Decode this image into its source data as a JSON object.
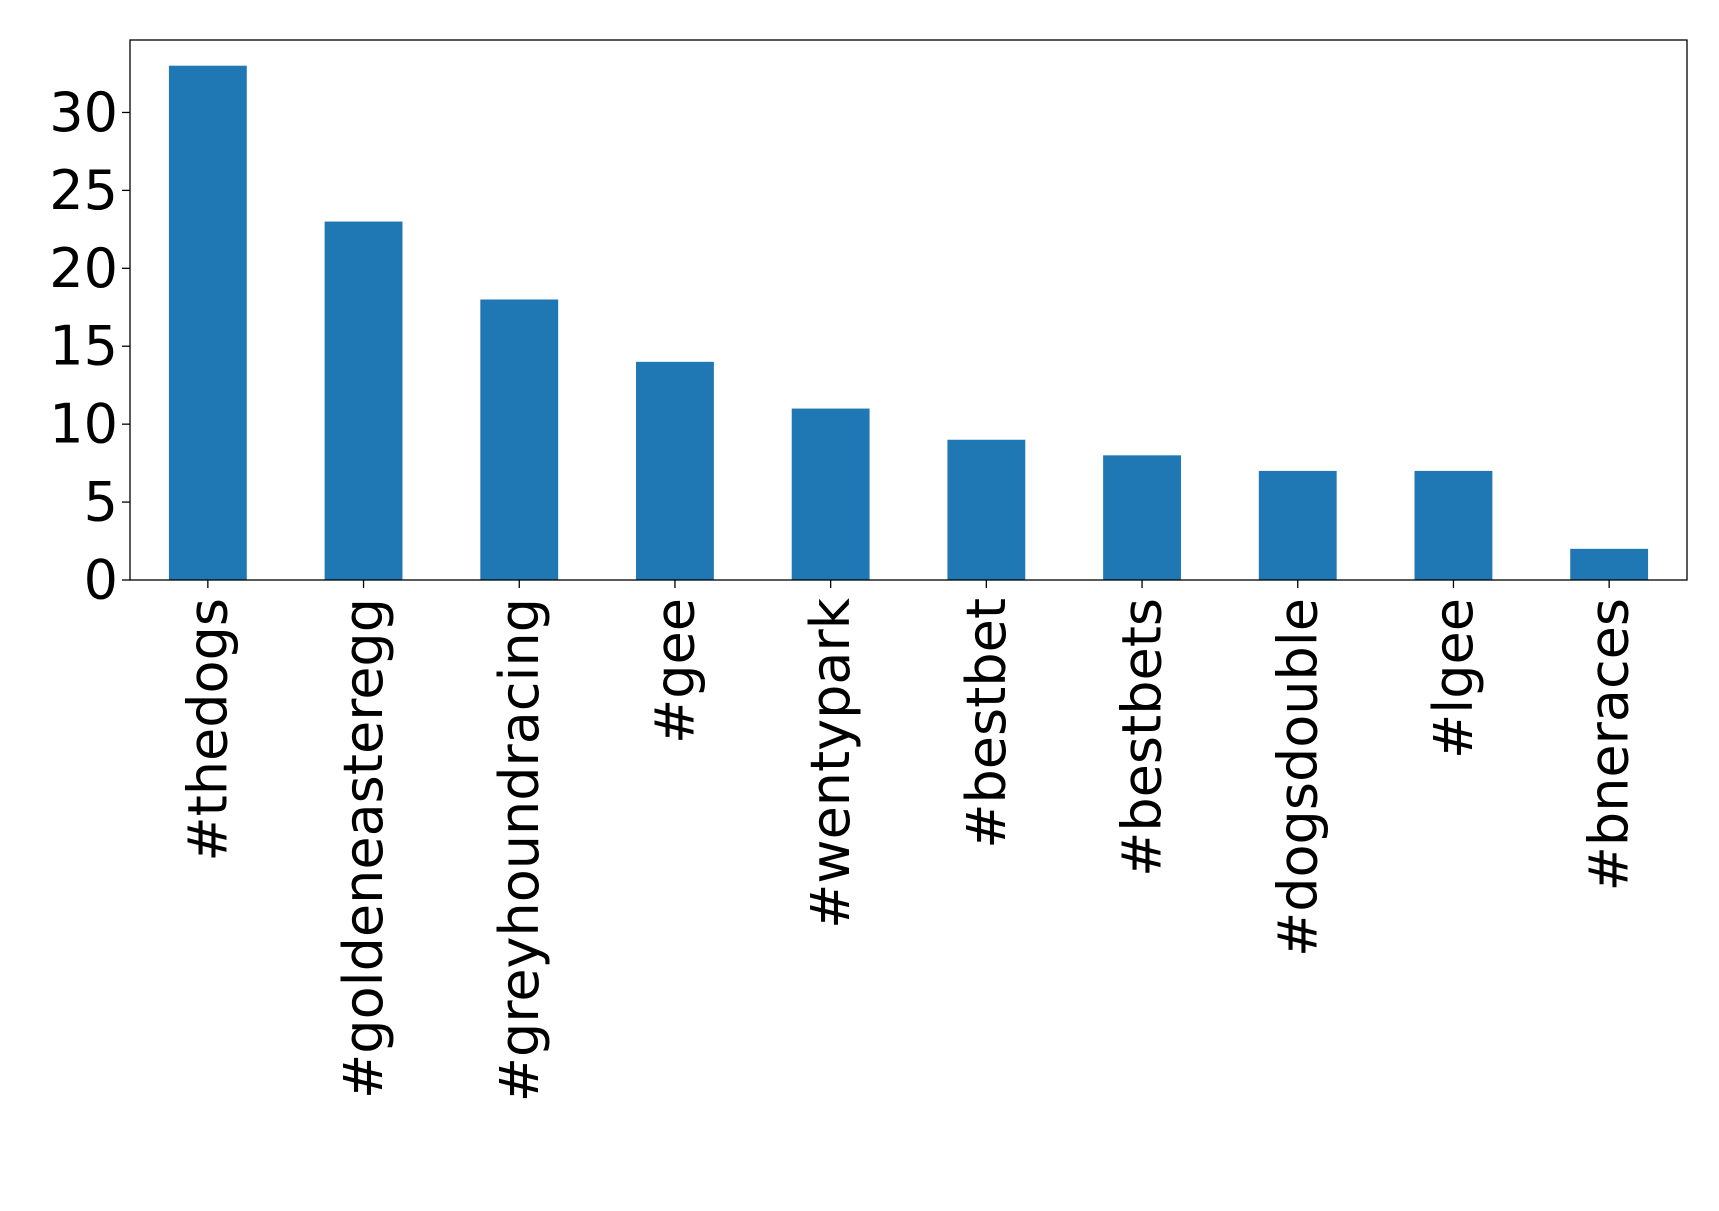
{
  "chart_data": {
    "type": "bar",
    "title": "",
    "xlabel": "",
    "ylabel": "",
    "categories": [
      "#thedogs",
      "#goldeneasteregg",
      "#greyhoundracing",
      "#gee",
      "#wentypark",
      "#bestbet",
      "#bestbets",
      "#dogsdouble",
      "#lgee",
      "#bneraces"
    ],
    "values": [
      33,
      23,
      18,
      14,
      11,
      9,
      8,
      7,
      7,
      2
    ],
    "ylim": [
      0,
      34.65
    ],
    "yticks": [
      0,
      5,
      10,
      15,
      20,
      25,
      30
    ],
    "grid": false,
    "legend": "none",
    "colors": {
      "bar": "#1f77b4",
      "axis": "#000000",
      "background": "#ffffff"
    }
  }
}
